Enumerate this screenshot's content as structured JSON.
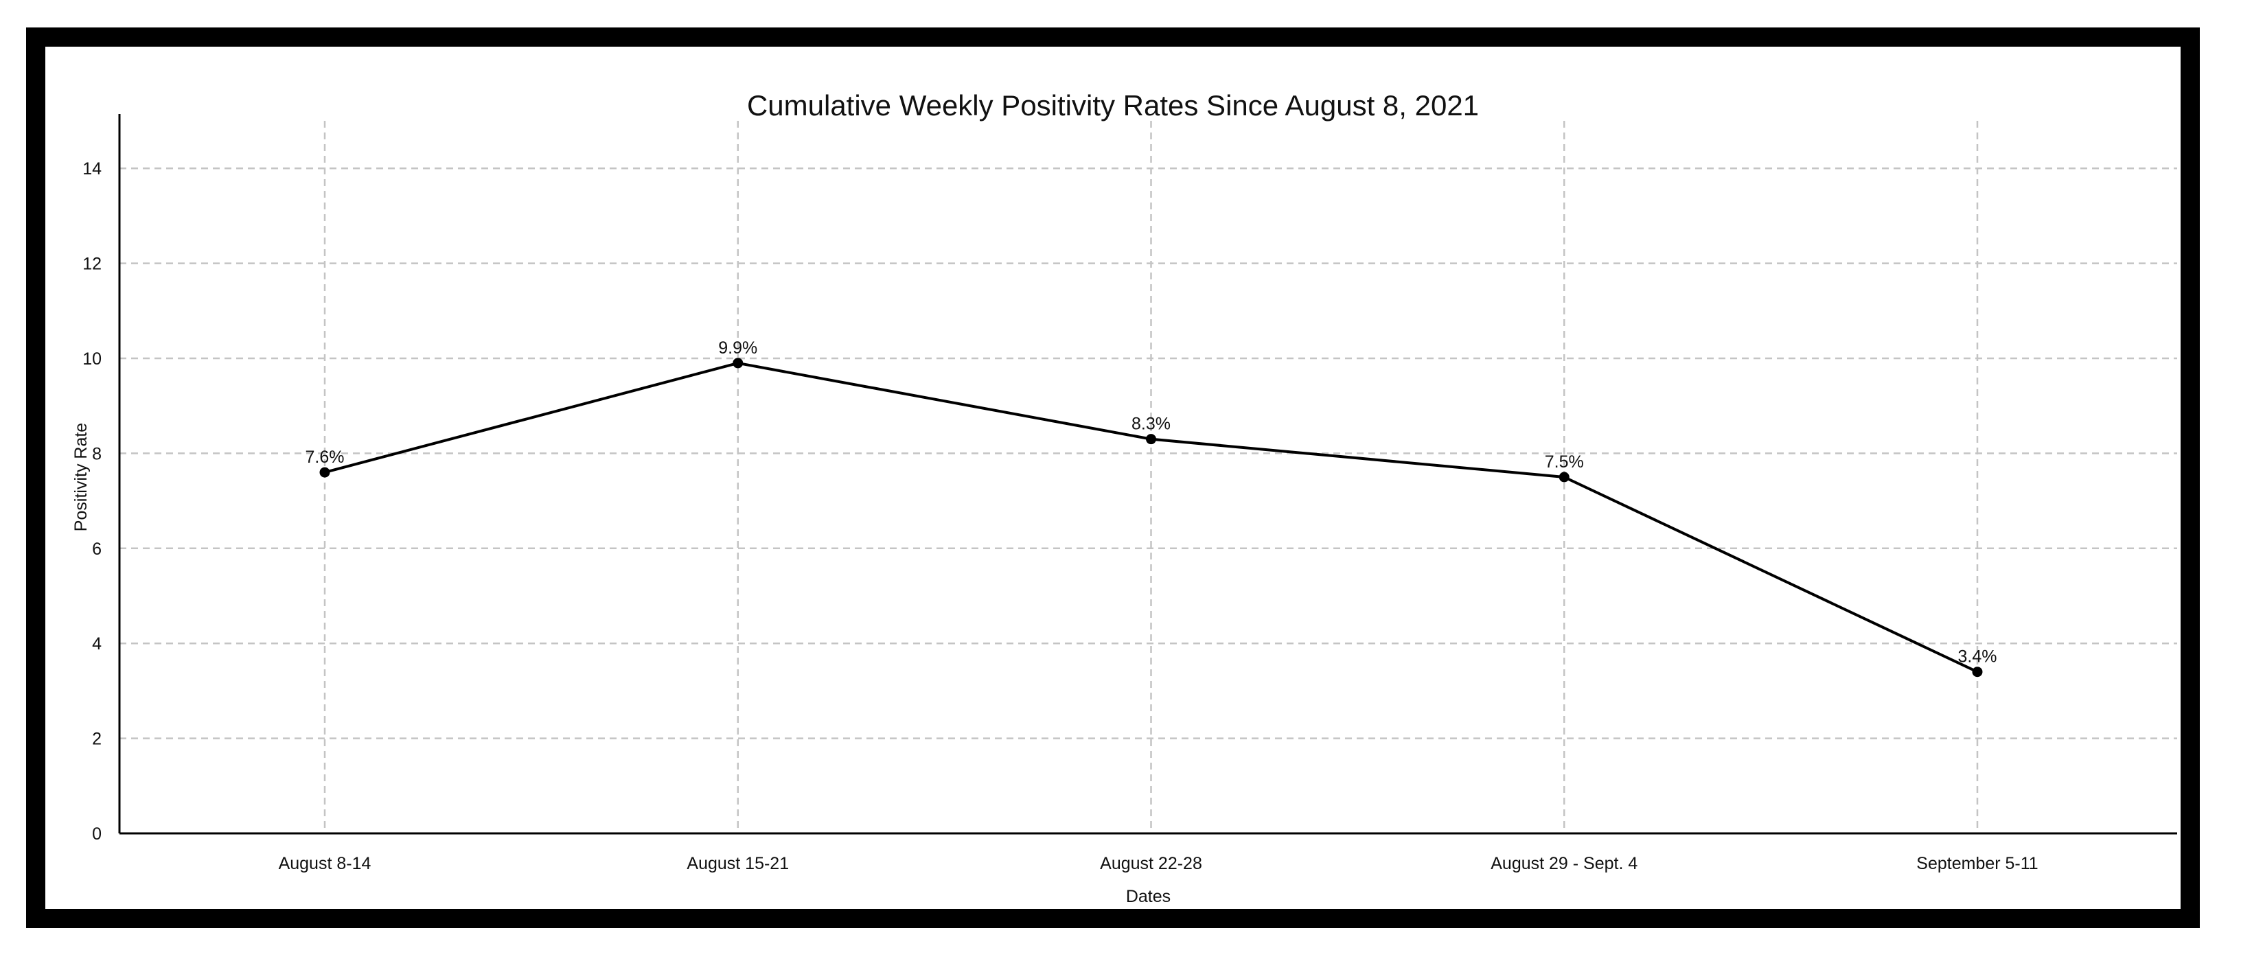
{
  "chart_data": {
    "type": "line",
    "title": "Cumulative Weekly Positivity Rates Since August 8, 2021",
    "xlabel": "Dates",
    "ylabel": "Positivity Rate",
    "categories": [
      "August 8-14",
      "August 15-21",
      "August 22-28",
      "August 29 - Sept. 4",
      "September 5-11"
    ],
    "series": [
      {
        "values": [
          7.6,
          9.9,
          8.3,
          7.5,
          3.4
        ],
        "data_labels": [
          "7.6%",
          "9.9%",
          "8.3%",
          "7.5%",
          "3.4%"
        ],
        "color": "#000000"
      }
    ],
    "ylim": [
      0,
      15
    ],
    "yticks": [
      0,
      2,
      4,
      6,
      8,
      10,
      12,
      14
    ],
    "grid": true,
    "legend": "none"
  }
}
